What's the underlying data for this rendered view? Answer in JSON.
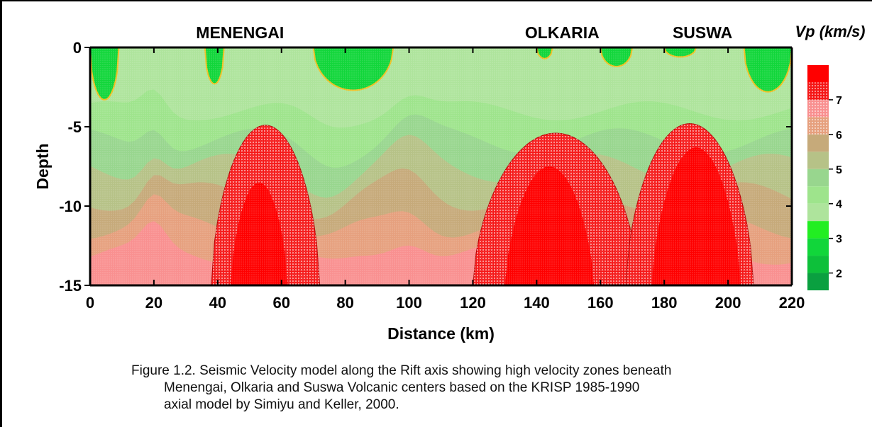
{
  "chart_data": {
    "type": "heatmap",
    "title": "",
    "xlabel": "Distance (km)",
    "ylabel": "Depth",
    "xlim": [
      0,
      220
    ],
    "ylim": [
      -15,
      0
    ],
    "x_ticks": [
      "0",
      "20",
      "40",
      "60",
      "80",
      "100",
      "120",
      "140",
      "160",
      "180",
      "200",
      "220"
    ],
    "y_ticks": [
      "0",
      "-5",
      "-10",
      "-15"
    ],
    "colorbar": {
      "title": "Vp (km/s)",
      "tick_labels": [
        "7",
        "6",
        "5",
        "4",
        "3",
        "2"
      ],
      "levels": [
        {
          "range": [
            7.5,
            8.0
          ],
          "color": "#ff0000"
        },
        {
          "range": [
            7.0,
            7.5
          ],
          "color": "#f51818"
        },
        {
          "range": [
            6.5,
            7.0
          ],
          "color": "#f99090"
        },
        {
          "range": [
            6.0,
            6.5
          ],
          "color": "#e6a07e"
        },
        {
          "range": [
            5.5,
            6.0
          ],
          "color": "#c6aa7a"
        },
        {
          "range": [
            5.0,
            5.5
          ],
          "color": "#b6c287"
        },
        {
          "range": [
            4.5,
            5.0
          ],
          "color": "#98d68e"
        },
        {
          "range": [
            4.0,
            4.5
          ],
          "color": "#9ee48c"
        },
        {
          "range": [
            3.5,
            4.0
          ],
          "color": "#aee49c"
        },
        {
          "range": [
            3.0,
            3.5
          ],
          "color": "#22ee22"
        },
        {
          "range": [
            2.5,
            3.0
          ],
          "color": "#11d63a"
        },
        {
          "range": [
            2.0,
            2.5
          ],
          "color": "#0dc03a"
        },
        {
          "range": [
            1.5,
            2.0
          ],
          "color": "#0aa040"
        }
      ]
    },
    "annotations": [
      {
        "text": "MENENGAI",
        "x": 47
      },
      {
        "text": "OLKARIA",
        "x": 148
      },
      {
        "text": "SUSWA",
        "x": 192
      }
    ],
    "high_velocity_zones": [
      {
        "name": "MENENGAI",
        "x_range": [
          38,
          72
        ],
        "top_depth": -4.9,
        "core_x_range": [
          44,
          62
        ],
        "core_top_depth": -8.5
      },
      {
        "name": "OLKARIA",
        "x_range": [
          120,
          172
        ],
        "top_depth": -5.4,
        "core_x_range": [
          130,
          158
        ],
        "core_top_depth": -7.5
      },
      {
        "name": "SUSWA",
        "x_range": [
          168,
          208
        ],
        "top_depth": -4.8,
        "core_x_range": [
          176,
          204
        ],
        "core_top_depth": -6.3
      }
    ]
  },
  "caption": {
    "line1": "Figure 1.2. Seismic Velocity model along the Rift axis showing high velocity zones beneath",
    "line2": "Menengai, Olkaria and Suswa Volcanic centers based on the KRISP 1985-1990",
    "line3": "axial model by Simiyu and Keller, 2000."
  }
}
